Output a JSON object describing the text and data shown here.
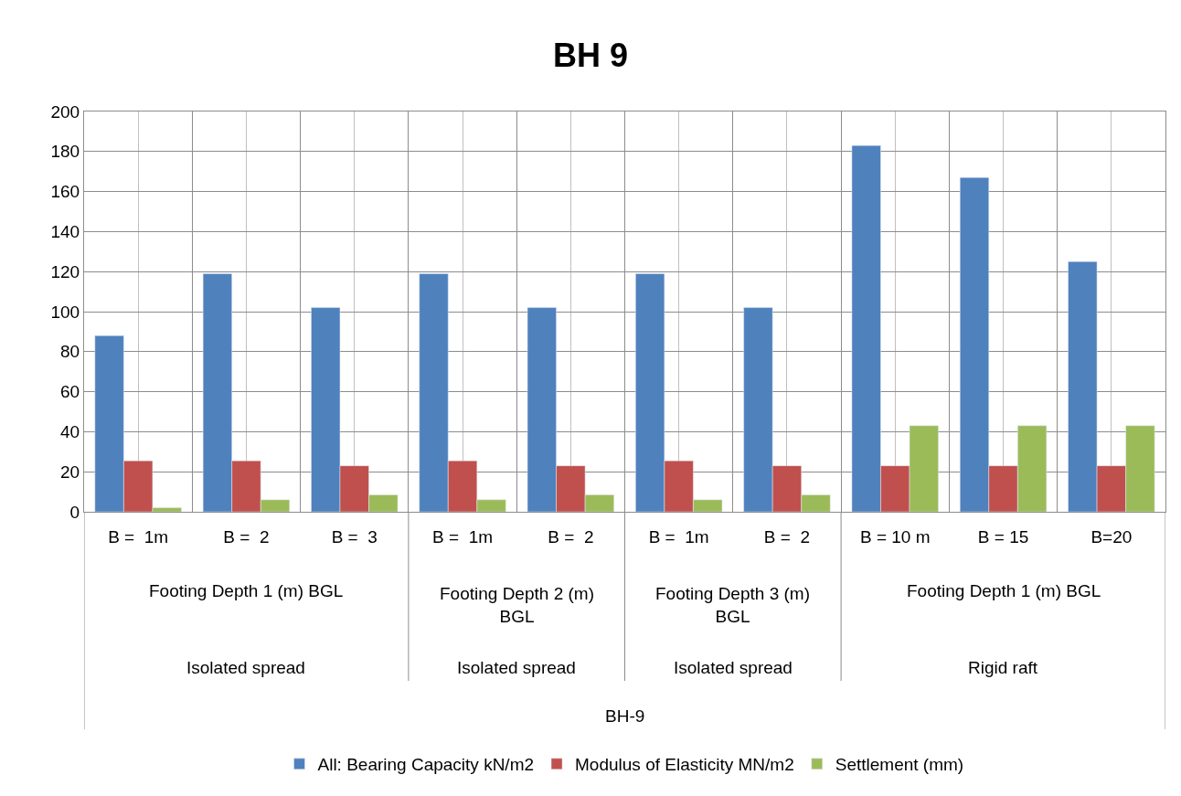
{
  "chart_data": {
    "type": "bar",
    "title": "BH 9",
    "categories": [
      "B =  1m",
      "B =  2",
      "B =  3",
      "B =  1m",
      "B =  2",
      "B =  1m",
      "B =  2",
      "B = 10 m",
      "B = 15",
      "B=20"
    ],
    "series": [
      {
        "name": "All: Bearing Capacity kN/m2",
        "color": "#4f81bd",
        "values": [
          88,
          119,
          102,
          119,
          102,
          119,
          102,
          183,
          167,
          125
        ]
      },
      {
        "name": "Modulus of Elasticity MN/m2",
        "color": "#c0504d",
        "values": [
          25.5,
          25.5,
          23,
          25.5,
          23,
          25.5,
          23,
          23,
          23,
          23
        ]
      },
      {
        "name": "Settlement (mm)",
        "color": "#9bbb59",
        "values": [
          2,
          6,
          8.5,
          6,
          8.5,
          6,
          8.5,
          43,
          43,
          43
        ]
      }
    ],
    "annotations": [
      "Footing Depth 1 (m) BGL",
      "Footing Depth 2 (m) BGL",
      "Footing Depth 3 (m) BGL",
      "Footing Depth 1 (m) BGL",
      "Isolated spread",
      "Isolated spread",
      "Isolated spread",
      "Rigid raft",
      "BH-9"
    ],
    "ylim": [
      0,
      200
    ],
    "yticks": [
      0,
      20,
      40,
      60,
      80,
      100,
      120,
      140,
      160,
      180,
      200
    ],
    "grid": true,
    "legend": "bottom"
  }
}
